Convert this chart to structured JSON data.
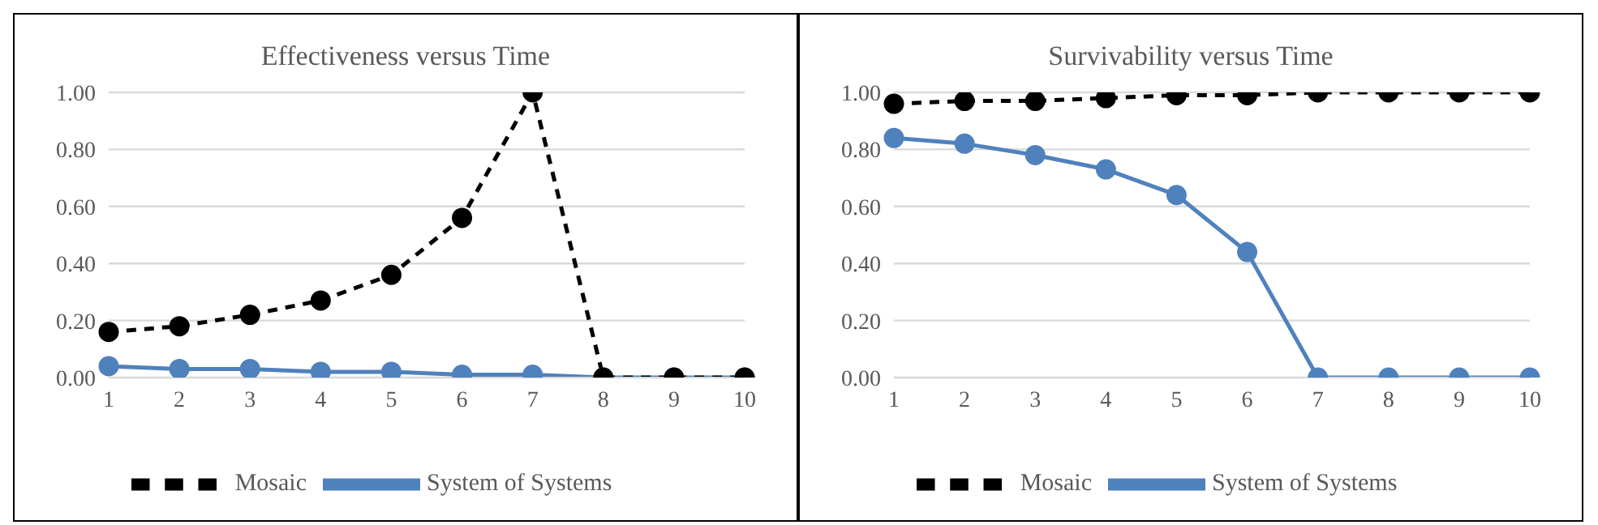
{
  "chart_data": [
    {
      "type": "line",
      "title": "Effectiveness versus Time",
      "categories": [
        "1",
        "2",
        "3",
        "4",
        "5",
        "6",
        "7",
        "8",
        "9",
        "10"
      ],
      "series": [
        {
          "name": "System of Systems",
          "color": "#4f81bd",
          "line_style": "solid",
          "values": [
            0.04,
            0.03,
            0.03,
            0.02,
            0.02,
            0.01,
            0.01,
            0,
            0,
            0
          ]
        },
        {
          "name": "Mosaic",
          "color": "#000000",
          "line_style": "dashed",
          "values": [
            0.16,
            0.18,
            0.22,
            0.27,
            0.36,
            0.56,
            1.0,
            0,
            0,
            0
          ]
        }
      ],
      "ylim": [
        0,
        1
      ],
      "yticks": [
        {
          "value": 0,
          "label": "0.00"
        },
        {
          "value": 0.2,
          "label": "0.20"
        },
        {
          "value": 0.4,
          "label": "0.40"
        },
        {
          "value": 0.6,
          "label": "0.60"
        },
        {
          "value": 0.8,
          "label": "0.80"
        },
        {
          "value": 1,
          "label": "1.00"
        }
      ],
      "grid": "y",
      "legend": "bottom",
      "marker": "circle"
    },
    {
      "type": "line",
      "title": "Survivability versus Time",
      "categories": [
        "1",
        "2",
        "3",
        "4",
        "5",
        "6",
        "7",
        "8",
        "9",
        "10"
      ],
      "series": [
        {
          "name": "System of Systems",
          "color": "#4f81bd",
          "line_style": "solid",
          "values": [
            0.84,
            0.82,
            0.78,
            0.73,
            0.64,
            0.44,
            0,
            0,
            0,
            0
          ]
        },
        {
          "name": "Mosaic",
          "color": "#000000",
          "line_style": "dashed",
          "values": [
            0.96,
            0.97,
            0.97,
            0.98,
            0.99,
            0.99,
            1.0,
            1.0,
            1.0,
            1.0
          ]
        }
      ],
      "ylim": [
        0,
        1
      ],
      "yticks": [
        {
          "value": 0,
          "label": "0.00"
        },
        {
          "value": 0.2,
          "label": "0.20"
        },
        {
          "value": 0.4,
          "label": "0.40"
        },
        {
          "value": 0.6,
          "label": "0.60"
        },
        {
          "value": 0.8,
          "label": "0.80"
        },
        {
          "value": 1,
          "label": "1.00"
        }
      ],
      "grid": "y",
      "legend": "bottom",
      "marker": "circle"
    }
  ]
}
